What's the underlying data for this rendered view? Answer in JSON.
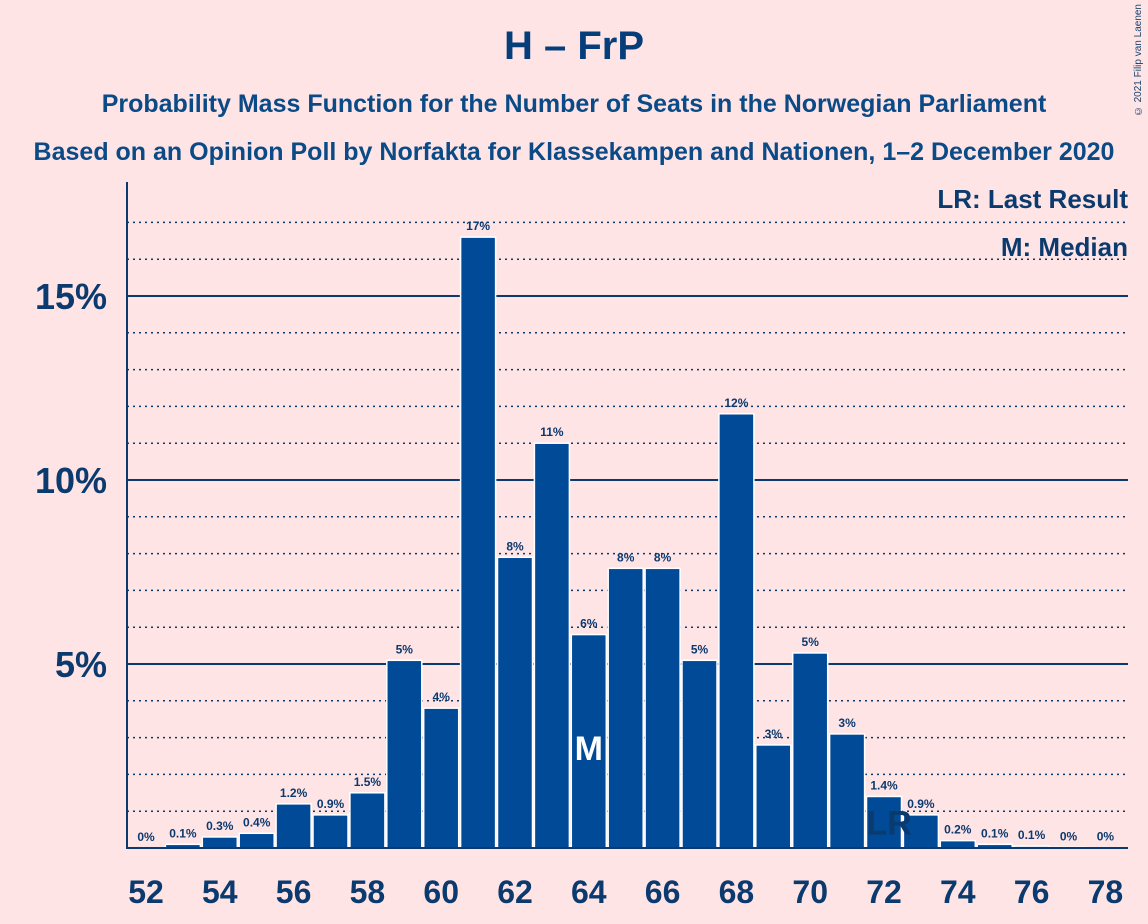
{
  "title": "H – FrP",
  "subtitle_1": "Probability Mass Function for the Number of Seats in the Norwegian Parliament",
  "subtitle_2": "Based on an Opinion Poll by Norfakta for Klassekampen and Nationen, 1–2 December 2020",
  "copyright": "© 2021 Filip van Laenen",
  "legend": {
    "last_result": "LR: Last Result",
    "median": "M: Median"
  },
  "colors": {
    "background": "#FFE4E6",
    "bar": "#004A98",
    "axis": "#0A3A6E"
  },
  "chart_data": {
    "type": "bar",
    "x": [
      52,
      53,
      54,
      55,
      56,
      57,
      58,
      59,
      60,
      61,
      62,
      63,
      64,
      65,
      66,
      67,
      68,
      69,
      70,
      71,
      72,
      73,
      74,
      75,
      76,
      77,
      78
    ],
    "values": [
      0,
      0.1,
      0.3,
      0.4,
      1.2,
      0.9,
      1.5,
      5.1,
      3.8,
      16.6,
      7.9,
      11.0,
      5.8,
      7.6,
      7.6,
      5.1,
      11.8,
      2.8,
      5.3,
      3.1,
      1.4,
      0.9,
      0.2,
      0.1,
      0.05,
      0.02,
      0.01
    ],
    "labels": [
      "0%",
      "0.1%",
      "0.3%",
      "0.4%",
      "1.2%",
      "0.9%",
      "1.5%",
      "5%",
      "4%",
      "17%",
      "8%",
      "11%",
      "6%",
      "8%",
      "8%",
      "5%",
      "12%",
      "3%",
      "5%",
      "3%",
      "1.4%",
      "0.9%",
      "0.2%",
      "0.1%",
      "0.1%",
      "0%",
      "0%"
    ],
    "x_tick_labels": [
      "52",
      "54",
      "56",
      "58",
      "60",
      "62",
      "64",
      "66",
      "68",
      "70",
      "72",
      "74",
      "76",
      "78"
    ],
    "y_tick_labels": [
      "5%",
      "10%",
      "15%"
    ],
    "y_ticks": [
      5,
      10,
      15
    ],
    "ylim": [
      0,
      18
    ],
    "median_seat": 64,
    "median_marker": "M",
    "last_result_seat": 72,
    "last_result_marker": "LR",
    "gridlines": true
  }
}
